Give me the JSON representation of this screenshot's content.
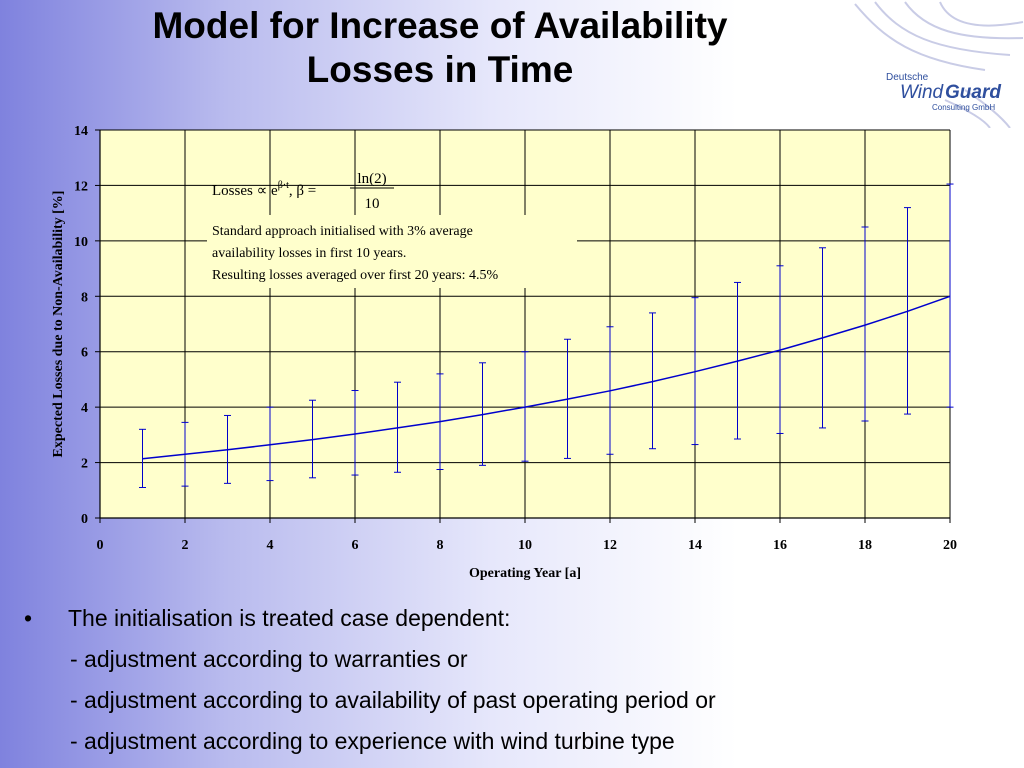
{
  "slide": {
    "title_line1": "Model for Increase of  Availability",
    "title_line2": "Losses in Time"
  },
  "logo": {
    "line1": "Deutsche",
    "wind": "Wind",
    "guard": "Guard",
    "line3": "Consulting GmbH",
    "color": "#2f4f9e"
  },
  "chart_data": {
    "type": "line",
    "xlabel": "Operating Year [a]",
    "ylabel": "Expected Losses due to Non-Availability [%]",
    "xlim": [
      0,
      20
    ],
    "ylim": [
      0,
      14
    ],
    "x_ticks": [
      0,
      2,
      4,
      6,
      8,
      10,
      12,
      14,
      16,
      18,
      20
    ],
    "y_ticks": [
      0,
      2,
      4,
      6,
      8,
      10,
      12,
      14
    ],
    "grid": true,
    "plot_background": "#ffffcc",
    "series": [
      {
        "type": "line",
        "color": "#0000cc",
        "x": [
          1,
          2,
          3,
          4,
          5,
          6,
          7,
          8,
          9,
          10,
          11,
          12,
          13,
          14,
          15,
          16,
          17,
          18,
          19,
          20
        ],
        "values": [
          2.14,
          2.3,
          2.46,
          2.64,
          2.83,
          3.03,
          3.25,
          3.48,
          3.73,
          4.0,
          4.29,
          4.59,
          4.92,
          5.28,
          5.66,
          6.06,
          6.5,
          6.96,
          7.46,
          8.0
        ]
      },
      {
        "type": "errorbar",
        "color": "#0000cc",
        "x": [
          1,
          2,
          3,
          4,
          5,
          6,
          7,
          8,
          9,
          10,
          11,
          12,
          13,
          14,
          15,
          16,
          17,
          18,
          19,
          20
        ],
        "low": [
          1.1,
          1.15,
          1.25,
          1.35,
          1.45,
          1.55,
          1.65,
          1.75,
          1.9,
          2.05,
          2.15,
          2.3,
          2.5,
          2.65,
          2.85,
          3.05,
          3.25,
          3.5,
          3.75,
          4.0
        ],
        "high": [
          3.2,
          3.45,
          3.7,
          4.0,
          4.25,
          4.6,
          4.9,
          5.2,
          5.6,
          6.0,
          6.45,
          6.9,
          7.4,
          7.95,
          8.5,
          9.1,
          9.75,
          10.5,
          11.2,
          12.05
        ]
      }
    ],
    "annotations": {
      "formula_lhs": "Losses ∝ e",
      "formula_exp": "β·t",
      "formula_mid": ", β =",
      "formula_num": "ln(2)",
      "formula_den": "10",
      "note_line1": "Standard approach initialised with 3% average",
      "note_line2": "availability losses in first 10 years.",
      "note_line3": "Resulting losses averaged over first 20 years: 4.5%"
    }
  },
  "bullets": {
    "marker": "•",
    "main": "The initialisation is treated case dependent:",
    "sub": [
      "- adjustment according to warranties or",
      "- adjustment according to availability of past operating period or",
      "- adjustment according to experience with wind turbine type"
    ]
  }
}
